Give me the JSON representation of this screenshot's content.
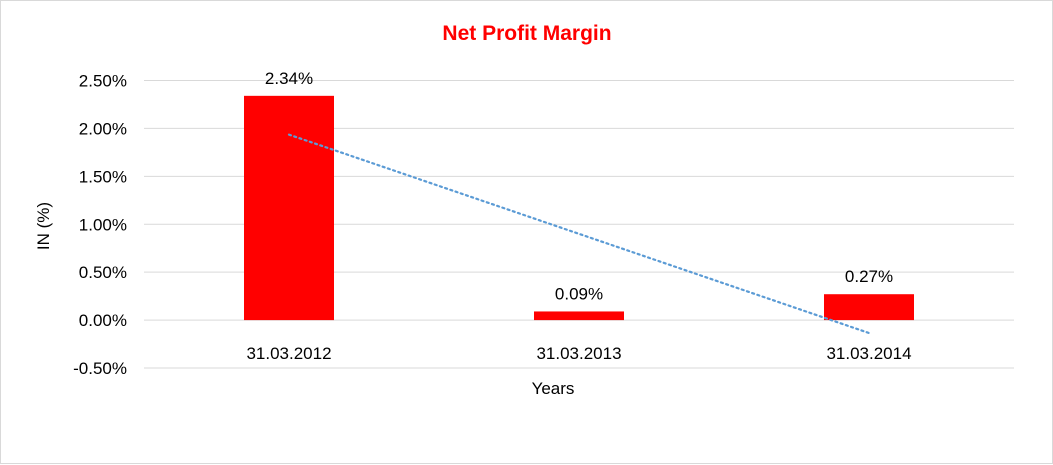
{
  "chart_data": {
    "type": "bar",
    "title": "Net Profit Margin",
    "xlabel": "Years",
    "ylabel": "IN (%)",
    "categories": [
      "31.03.2012",
      "31.03.2013",
      "31.03.2014"
    ],
    "values": [
      2.34,
      0.09,
      0.27
    ],
    "data_labels": [
      "2.34%",
      "0.09%",
      "0.27%"
    ],
    "ylim": [
      -0.5,
      2.5
    ],
    "yticks": [
      -0.5,
      0,
      0.5,
      1.0,
      1.5,
      2.0,
      2.5
    ],
    "ytick_labels": [
      "-0.50%",
      "0.00%",
      "0.50%",
      "1.00%",
      "1.50%",
      "2.00%",
      "2.50%"
    ],
    "grid": true,
    "trendline": {
      "type": "linear",
      "style": "dotted",
      "color": "#5b9bd5"
    },
    "colors": {
      "bar": "#ff0000",
      "title": "#ff0000",
      "grid": "#d9d9d9"
    }
  }
}
